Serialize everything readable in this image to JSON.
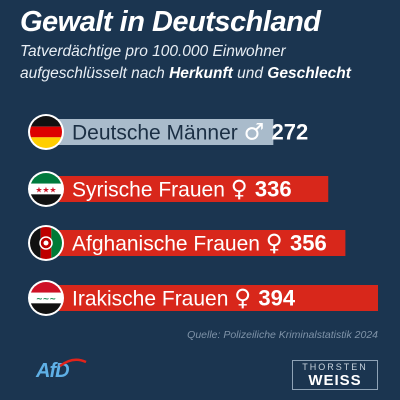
{
  "title": "Gewalt in Deutschland",
  "subtitle": {
    "line1": "Tatverdächtige pro 100.000 Einwohner",
    "line2_prefix": "aufgeschlüsselt nach ",
    "line2_bold1": "Herkunft",
    "line2_mid": " und ",
    "line2_bold2": "Geschlecht"
  },
  "chart_data": {
    "type": "bar",
    "orientation": "horizontal",
    "categories": [
      "Deutsche Männer",
      "Syrische Frauen",
      "Afghanische Frauen",
      "Irakische Frauen"
    ],
    "values": [
      272,
      336,
      356,
      394
    ],
    "symbols": [
      "♂",
      "♀",
      "♀",
      "♀"
    ],
    "flags": [
      "germany-flag",
      "syria-flag",
      "afghanistan-flag",
      "iraq-flag"
    ],
    "colors": [
      "#a9bbcb",
      "#d8271b",
      "#d8271b",
      "#d8271b"
    ]
  },
  "source": "Quelle: Polizeiliche Kriminalstatistik 2024",
  "logos": {
    "afd": "AfD",
    "tw_top": "THORSTEN",
    "tw_bottom": "WEISS"
  }
}
